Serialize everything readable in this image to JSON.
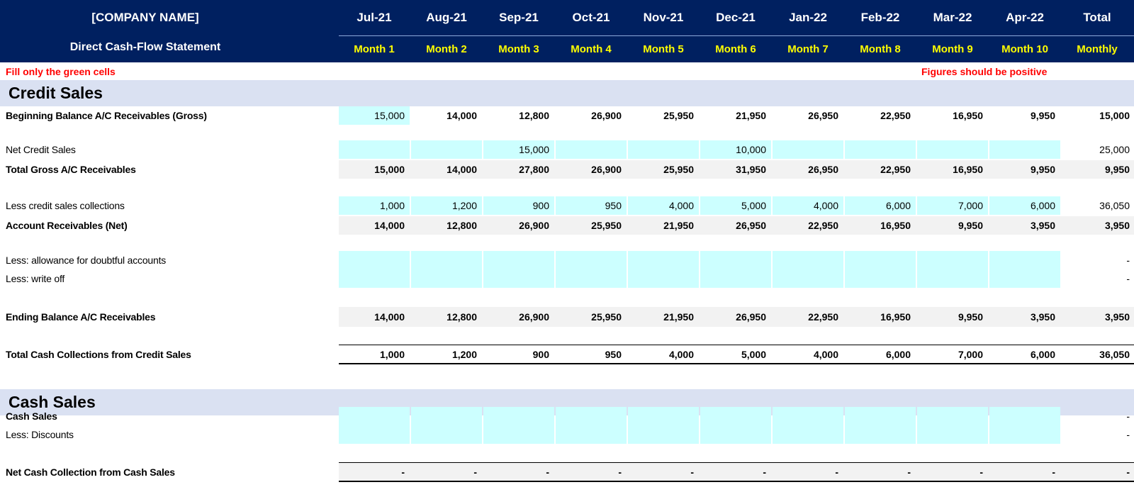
{
  "header": {
    "company": "[COMPANY NAME]",
    "subtitle": "Direct Cash-Flow Statement",
    "months": [
      "Jul-21",
      "Aug-21",
      "Sep-21",
      "Oct-21",
      "Nov-21",
      "Dec-21",
      "Jan-22",
      "Feb-22",
      "Mar-22",
      "Apr-22"
    ],
    "month_labels": [
      "Month 1",
      "Month 2",
      "Month 3",
      "Month 4",
      "Month 5",
      "Month 6",
      "Month 7",
      "Month 8",
      "Month 9",
      "Month 10"
    ],
    "total_top": "Total",
    "total_bottom": "Monthly"
  },
  "notes": {
    "fill": "Fill only the green cells",
    "positive": "Figures should be positive"
  },
  "credit": {
    "title": "Credit Sales",
    "rows": [
      {
        "label": "Beginning Balance A/C Receivables (Gross)",
        "values": [
          "15,000",
          "14,000",
          "12,800",
          "26,900",
          "25,950",
          "21,950",
          "26,950",
          "22,950",
          "16,950",
          "9,950"
        ],
        "total": "15,000"
      },
      {
        "label": "Net Credit Sales",
        "values": [
          "",
          "",
          "15,000",
          "",
          "",
          "10,000",
          "",
          "",
          "",
          ""
        ],
        "total": "25,000"
      },
      {
        "label": "Total Gross A/C Receivables",
        "values": [
          "15,000",
          "14,000",
          "27,800",
          "26,900",
          "25,950",
          "31,950",
          "26,950",
          "22,950",
          "16,950",
          "9,950"
        ],
        "total": "9,950"
      },
      {
        "label": "Less credit sales collections",
        "values": [
          "1,000",
          "1,200",
          "900",
          "950",
          "4,000",
          "5,000",
          "4,000",
          "6,000",
          "7,000",
          "6,000"
        ],
        "total": "36,050"
      },
      {
        "label": "Account Receivables (Net)",
        "values": [
          "14,000",
          "12,800",
          "26,900",
          "25,950",
          "21,950",
          "26,950",
          "22,950",
          "16,950",
          "9,950",
          "3,950"
        ],
        "total": "3,950"
      },
      {
        "label": "Less: allowance for doubtful accounts",
        "values": [
          "",
          "",
          "",
          "",
          "",
          "",
          "",
          "",
          "",
          ""
        ],
        "total": "-"
      },
      {
        "label": "Less: write off",
        "values": [
          "",
          "",
          "",
          "",
          "",
          "",
          "",
          "",
          "",
          ""
        ],
        "total": "-"
      },
      {
        "label": "Ending Balance A/C Receivables",
        "values": [
          "14,000",
          "12,800",
          "26,900",
          "25,950",
          "21,950",
          "26,950",
          "22,950",
          "16,950",
          "9,950",
          "3,950"
        ],
        "total": "3,950"
      },
      {
        "label": "Total Cash Collections from Credit Sales",
        "values": [
          "1,000",
          "1,200",
          "900",
          "950",
          "4,000",
          "5,000",
          "4,000",
          "6,000",
          "7,000",
          "6,000"
        ],
        "total": "36,050"
      }
    ]
  },
  "cash": {
    "title": "Cash Sales",
    "rows": [
      {
        "label": "Cash Sales",
        "values": [
          "",
          "",
          "",
          "",
          "",
          "",
          "",
          "",
          "",
          ""
        ],
        "total": "-"
      },
      {
        "label": "Less: Discounts",
        "values": [
          "",
          "",
          "",
          "",
          "",
          "",
          "",
          "",
          "",
          ""
        ],
        "total": "-"
      },
      {
        "label": "Net Cash Collection from Cash Sales",
        "values": [
          "-",
          "-",
          "-",
          "-",
          "-",
          "-",
          "-",
          "-",
          "-",
          "-"
        ],
        "total": "-"
      }
    ]
  }
}
